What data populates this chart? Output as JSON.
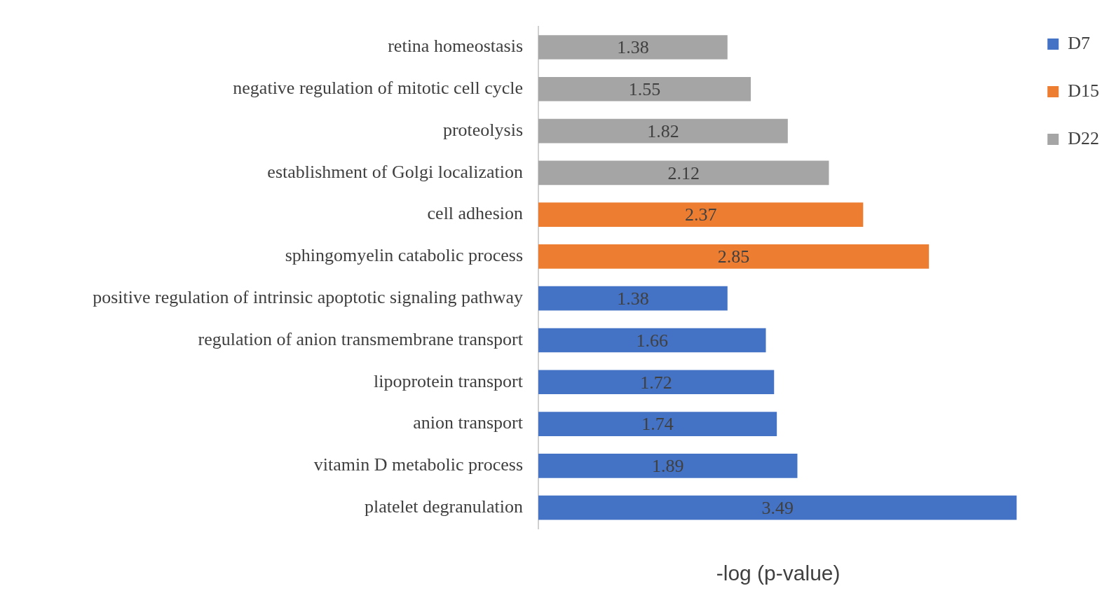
{
  "chart_data": {
    "type": "bar",
    "orientation": "horizontal",
    "xlabel": "-log (p-value)",
    "categories": [
      "retina homeostasis",
      "negative regulation of mitotic cell cycle",
      "proteolysis",
      "establishment of Golgi localization",
      "cell adhesion",
      "sphingomyelin catabolic process",
      "positive regulation of intrinsic apoptotic signaling pathway",
      "regulation of anion transmembrane transport",
      "lipoprotein transport",
      "anion transport",
      "vitamin D metabolic process",
      "platelet degranulation"
    ],
    "series": [
      {
        "name": "D7",
        "color": "#4472c4",
        "values": [
          null,
          null,
          null,
          null,
          null,
          null,
          1.38,
          1.66,
          1.72,
          1.74,
          1.89,
          3.49
        ]
      },
      {
        "name": "D15",
        "color": "#ed7d31",
        "values": [
          null,
          null,
          null,
          null,
          2.37,
          2.85,
          null,
          null,
          null,
          null,
          null,
          null
        ]
      },
      {
        "name": "D22",
        "color": "#a5a5a5",
        "values": [
          1.38,
          1.55,
          1.82,
          2.12,
          null,
          null,
          null,
          null,
          null,
          null,
          null,
          null
        ]
      }
    ],
    "data_labels": true,
    "legend": "right",
    "tick_labels": "y",
    "grid": false
  }
}
